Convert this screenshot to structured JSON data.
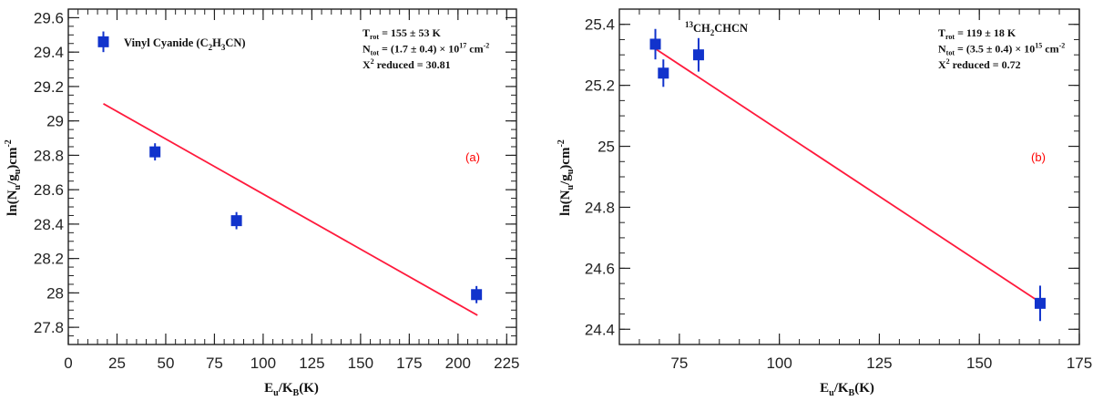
{
  "chart_data": [
    {
      "type": "scatter",
      "panel_label": "(a)",
      "xlabel_main": "E",
      "xlabel_sub": "u",
      "xlabel_mid": "/K",
      "xlabel_sub2": "B",
      "xlabel_end": "(K)",
      "ylabel_pre": "ln(N",
      "ylabel_sub1": "u",
      "ylabel_mid": "/g",
      "ylabel_sub2": "u",
      "ylabel_end": ")cm",
      "ylabel_sup": "-2",
      "xlim": [
        0,
        230
      ],
      "ylim": [
        27.7,
        29.65
      ],
      "xticks": [
        0,
        25,
        50,
        75,
        100,
        125,
        150,
        175,
        200,
        225
      ],
      "xtick_labels": [
        "0",
        "25",
        "50",
        "75",
        "100",
        "125",
        "150",
        "175",
        "200",
        "225"
      ],
      "yticks": [
        27.8,
        28,
        28.2,
        28.4,
        28.6,
        28.8,
        29,
        29.2,
        29.4,
        29.6
      ],
      "ytick_labels": [
        "27.8",
        "28",
        "28.2",
        "28.4",
        "28.6",
        "28.8",
        "29",
        "29.2",
        "29.4",
        "29.6"
      ],
      "points": [
        {
          "x": 44.5,
          "y": 28.82,
          "err": 0.05
        },
        {
          "x": 86.3,
          "y": 28.42,
          "err": 0.05
        },
        {
          "x": 209.5,
          "y": 27.99,
          "err": 0.05
        }
      ],
      "fit": {
        "x": [
          18,
          210
        ],
        "y": [
          29.1,
          27.87
        ]
      },
      "legend": {
        "label_pre": "Vinyl Cyanide (C",
        "label_sub1": "2",
        "label_mid": "H",
        "label_sub2": "3",
        "label_end": "CN)"
      },
      "legend_marker": {
        "x": 18,
        "y": 29.46,
        "err": 0.06
      },
      "annotations": {
        "trot_pre": "T",
        "trot_sub": "rot",
        "trot_val": " =  155 ± 53  K",
        "ntot_pre": "N",
        "ntot_sub": "tot",
        "ntot_val": " = (1.7 ± 0.4) × 10",
        "ntot_exp": "17",
        "ntot_unit": " cm",
        "ntot_unit_sup": "-2",
        "chi_pre": "X",
        "chi_sup": "2",
        "chi_val": " reduced = 30.81"
      }
    },
    {
      "type": "scatter",
      "panel_label": "(b)",
      "xlabel_main": "E",
      "xlabel_sub": "u",
      "xlabel_mid": "/K",
      "xlabel_sub2": "B",
      "xlabel_end": "(K)",
      "ylabel_pre": "ln(N",
      "ylabel_sub1": "u",
      "ylabel_mid": "/g",
      "ylabel_sub2": "u",
      "ylabel_end": ")cm",
      "ylabel_sup": "-2",
      "xlim": [
        60,
        175
      ],
      "ylim": [
        24.35,
        25.45
      ],
      "xticks": [
        75,
        100,
        125,
        150,
        175
      ],
      "xtick_labels": [
        "75",
        "100",
        "125",
        "150",
        "175"
      ],
      "yticks": [
        24.4,
        24.6,
        24.8,
        25,
        25.2,
        25.4
      ],
      "ytick_labels": [
        "24.4",
        "24.6",
        "24.8",
        "25",
        "25.2",
        "25.4"
      ],
      "points": [
        {
          "x": 69.0,
          "y": 25.335,
          "err": 0.05
        },
        {
          "x": 71.0,
          "y": 25.24,
          "err": 0.045
        },
        {
          "x": 79.8,
          "y": 25.3,
          "err": 0.055
        },
        {
          "x": 165.2,
          "y": 24.485,
          "err": 0.058
        }
      ],
      "fit": {
        "x": [
          69,
          165
        ],
        "y": [
          25.32,
          24.49
        ]
      },
      "legend": {
        "label_sup": "13",
        "label_main": "CH",
        "label_sub1": "2",
        "label_end": "CHCN"
      },
      "annotations": {
        "trot_pre": "T",
        "trot_sub": "rot",
        "trot_val": " =  119 ± 18  K",
        "ntot_pre": "N",
        "ntot_sub": "tot",
        "ntot_val": " = (3.5 ± 0.4) × 10",
        "ntot_exp": "15",
        "ntot_unit": " cm",
        "ntot_unit_sup": "-2",
        "chi_pre": "X",
        "chi_sup": "2",
        "chi_val": " reduced = 0.72"
      }
    }
  ],
  "colors": {
    "marker": "#1133cc",
    "fit": "#ff1a3c",
    "panel_label": "#ff0000",
    "axis": "#222222"
  }
}
